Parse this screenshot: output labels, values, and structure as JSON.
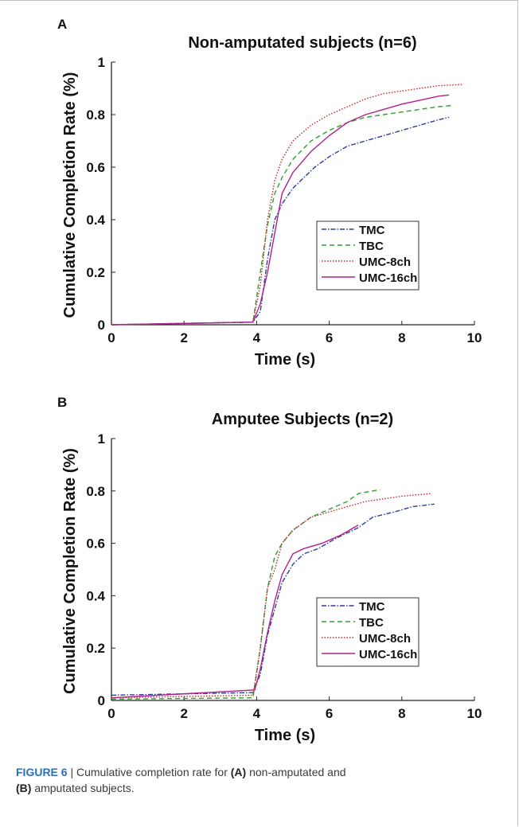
{
  "chart_data": [
    {
      "type": "line",
      "panel": "A",
      "title": "Non-amputated subjects (n=6)",
      "xlabel": "Time (s)",
      "ylabel": "Cumulative Completion Rate (%)",
      "xlim": [
        0,
        10
      ],
      "ylim": [
        0,
        1
      ],
      "xticks": [
        "0",
        "2",
        "4",
        "6",
        "8",
        "10"
      ],
      "yticks": [
        "0",
        "0.2",
        "0.4",
        "0.6",
        "0.8",
        "1"
      ],
      "grid": false,
      "legend_position": "right-middle",
      "series": [
        {
          "name": "TMC",
          "color": "#2a3f9a",
          "dash": "6 2 1.5 2",
          "points": [
            [
              0,
              0
            ],
            [
              3.9,
              0.01
            ],
            [
              4.1,
              0.05
            ],
            [
              4.3,
              0.25
            ],
            [
              4.5,
              0.4
            ],
            [
              4.7,
              0.46
            ],
            [
              5.0,
              0.52
            ],
            [
              5.3,
              0.56
            ],
            [
              5.6,
              0.6
            ],
            [
              6.0,
              0.64
            ],
            [
              6.5,
              0.68
            ],
            [
              7.0,
              0.7
            ],
            [
              7.5,
              0.72
            ],
            [
              8.0,
              0.74
            ],
            [
              8.5,
              0.76
            ],
            [
              9.0,
              0.78
            ],
            [
              9.3,
              0.79
            ]
          ]
        },
        {
          "name": "TBC",
          "color": "#2ea02e",
          "dash": "6 4",
          "points": [
            [
              0,
              0
            ],
            [
              3.9,
              0.01
            ],
            [
              4.1,
              0.2
            ],
            [
              4.3,
              0.38
            ],
            [
              4.5,
              0.5
            ],
            [
              4.7,
              0.56
            ],
            [
              5.0,
              0.63
            ],
            [
              5.5,
              0.7
            ],
            [
              6.0,
              0.74
            ],
            [
              6.5,
              0.77
            ],
            [
              7.0,
              0.79
            ],
            [
              7.5,
              0.8
            ],
            [
              8.0,
              0.81
            ],
            [
              8.5,
              0.82
            ],
            [
              9.0,
              0.83
            ],
            [
              9.4,
              0.835
            ]
          ]
        },
        {
          "name": "UMC-8ch",
          "color": "#c0282a",
          "dash": "1.5 2",
          "points": [
            [
              0,
              0
            ],
            [
              3.9,
              0.01
            ],
            [
              4.1,
              0.15
            ],
            [
              4.3,
              0.4
            ],
            [
              4.5,
              0.55
            ],
            [
              4.7,
              0.63
            ],
            [
              5.0,
              0.7
            ],
            [
              5.5,
              0.76
            ],
            [
              6.0,
              0.8
            ],
            [
              6.5,
              0.83
            ],
            [
              7.0,
              0.86
            ],
            [
              7.5,
              0.88
            ],
            [
              8.0,
              0.89
            ],
            [
              8.5,
              0.9
            ],
            [
              9.0,
              0.91
            ],
            [
              9.7,
              0.915
            ]
          ]
        },
        {
          "name": "UMC-16ch",
          "color": "#b0208e",
          "dash": "",
          "points": [
            [
              0,
              0
            ],
            [
              3.9,
              0.01
            ],
            [
              4.1,
              0.08
            ],
            [
              4.3,
              0.2
            ],
            [
              4.5,
              0.35
            ],
            [
              4.7,
              0.5
            ],
            [
              5.0,
              0.58
            ],
            [
              5.5,
              0.66
            ],
            [
              6.0,
              0.72
            ],
            [
              6.5,
              0.77
            ],
            [
              7.0,
              0.8
            ],
            [
              7.5,
              0.82
            ],
            [
              8.0,
              0.84
            ],
            [
              8.5,
              0.855
            ],
            [
              9.0,
              0.87
            ],
            [
              9.3,
              0.875
            ]
          ]
        }
      ]
    },
    {
      "type": "line",
      "panel": "B",
      "title": "Amputee Subjects (n=2)",
      "xlabel": "Time (s)",
      "ylabel": "Cumulative Completion Rate (%)",
      "xlim": [
        0,
        10
      ],
      "ylim": [
        0,
        1
      ],
      "xticks": [
        "0",
        "2",
        "4",
        "6",
        "8",
        "10"
      ],
      "yticks": [
        "0",
        "0.2",
        "0.4",
        "0.6",
        "0.8",
        "1"
      ],
      "grid": false,
      "legend_position": "right-middle",
      "series": [
        {
          "name": "TMC",
          "color": "#2a3f9a",
          "dash": "6 2 1.5 2",
          "points": [
            [
              0,
              0.02
            ],
            [
              3.9,
              0.03
            ],
            [
              4.1,
              0.1
            ],
            [
              4.3,
              0.25
            ],
            [
              4.5,
              0.35
            ],
            [
              4.7,
              0.45
            ],
            [
              5.0,
              0.52
            ],
            [
              5.3,
              0.56
            ],
            [
              5.7,
              0.58
            ],
            [
              6.2,
              0.62
            ],
            [
              6.8,
              0.66
            ],
            [
              7.2,
              0.7
            ],
            [
              7.8,
              0.72
            ],
            [
              8.3,
              0.74
            ],
            [
              8.9,
              0.75
            ]
          ]
        },
        {
          "name": "TBC",
          "color": "#2ea02e",
          "dash": "6 4",
          "points": [
            [
              0,
              0.005
            ],
            [
              3.9,
              0.01
            ],
            [
              4.1,
              0.2
            ],
            [
              4.3,
              0.43
            ],
            [
              4.5,
              0.55
            ],
            [
              4.7,
              0.6
            ],
            [
              5.0,
              0.65
            ],
            [
              5.5,
              0.7
            ],
            [
              6.0,
              0.73
            ],
            [
              6.5,
              0.76
            ],
            [
              6.8,
              0.79
            ],
            [
              7.2,
              0.8
            ],
            [
              7.4,
              0.805
            ]
          ]
        },
        {
          "name": "UMC-8ch",
          "color": "#c0282a",
          "dash": "1.5 2",
          "points": [
            [
              0,
              0.01
            ],
            [
              3.9,
              0.02
            ],
            [
              4.1,
              0.2
            ],
            [
              4.3,
              0.43
            ],
            [
              4.5,
              0.5
            ],
            [
              4.7,
              0.6
            ],
            [
              5.0,
              0.65
            ],
            [
              5.5,
              0.7
            ],
            [
              6.0,
              0.72
            ],
            [
              6.5,
              0.74
            ],
            [
              7.0,
              0.76
            ],
            [
              7.5,
              0.77
            ],
            [
              8.0,
              0.78
            ],
            [
              8.8,
              0.79
            ]
          ]
        },
        {
          "name": "UMC-16ch",
          "color": "#b0208e",
          "dash": "",
          "points": [
            [
              0,
              0.01
            ],
            [
              3.95,
              0.04
            ],
            [
              4.1,
              0.12
            ],
            [
              4.3,
              0.26
            ],
            [
              4.5,
              0.38
            ],
            [
              4.7,
              0.48
            ],
            [
              5.0,
              0.56
            ],
            [
              5.3,
              0.58
            ],
            [
              5.8,
              0.6
            ],
            [
              6.3,
              0.63
            ],
            [
              6.8,
              0.67
            ]
          ]
        }
      ]
    }
  ],
  "caption": {
    "figure_label": "FIGURE 6",
    "separator": " | ",
    "text_1": "Cumulative completion rate for ",
    "ref_a": "(A)",
    "text_2": " non-amputated and",
    "ref_b": "(B)",
    "text_3": " amputated subjects."
  }
}
